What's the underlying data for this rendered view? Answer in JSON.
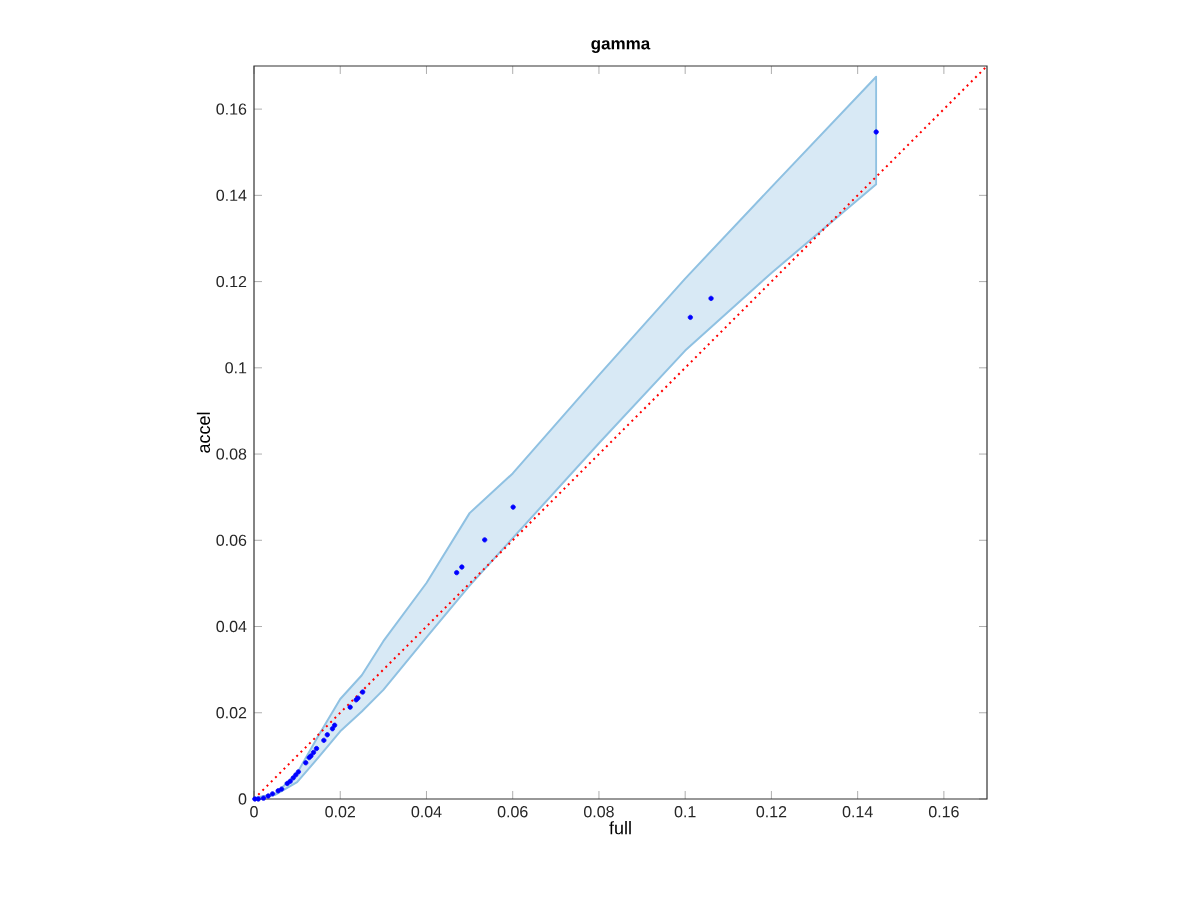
{
  "chart_data": {
    "type": "scatter",
    "title": "**gamma**",
    "xlabel": "full",
    "ylabel": "accel",
    "xlim": [
      0,
      0.17
    ],
    "ylim": [
      0,
      0.17
    ],
    "xticks": [
      0,
      0.02,
      0.04,
      0.06,
      0.08,
      0.1,
      0.12,
      0.14,
      0.16
    ],
    "yticks": [
      0,
      0.02,
      0.04,
      0.06,
      0.08,
      0.1,
      0.12,
      0.14,
      0.16
    ],
    "grid": false,
    "series": [
      {
        "type": "area",
        "color": "#8fc1e2",
        "x": [
          0,
          0.005,
          0.01,
          0.015,
          0.02,
          0.025,
          0.03,
          0.04,
          0.05,
          0.06,
          0.08,
          0.1,
          0.12,
          0.1443
        ],
        "values": [
          null,
          null,
          null,
          null,
          null,
          null,
          null,
          null,
          null,
          null,
          null,
          null,
          null,
          null
        ],
        "lower": [
          0,
          0.001,
          0.0039,
          0.0097,
          0.0157,
          0.0203,
          0.0253,
          0.0375,
          0.0495,
          0.0605,
          0.0825,
          0.104,
          0.122,
          0.1426
        ],
        "upper": [
          0.0002,
          0.0012,
          0.006,
          0.0148,
          0.0232,
          0.0287,
          0.0366,
          0.0501,
          0.0663,
          0.0755,
          0.0983,
          0.1207,
          0.1419,
          0.1675
        ]
      },
      {
        "type": "line",
        "color": "#ff0000",
        "line_style": "dotted",
        "marker": "none",
        "x": [
          0,
          0.17
        ],
        "values": [
          0,
          0.17
        ]
      },
      {
        "color": "#0000ff",
        "marker": "circle",
        "x": [
          0.0002,
          0.001,
          0.0022,
          0.0033,
          0.0043,
          0.0056,
          0.0064,
          0.0077,
          0.0084,
          0.0091,
          0.0097,
          0.0103,
          0.012,
          0.0128,
          0.0132,
          0.0138,
          0.0145,
          0.0162,
          0.017,
          0.0182,
          0.0187,
          0.0223,
          0.0237,
          0.0241,
          0.0252,
          0.047,
          0.0482,
          0.0535,
          0.0601,
          0.1012,
          0.106,
          0.1443
        ],
        "values": [
          0,
          0,
          0.0002,
          0.0007,
          0.0012,
          0.0019,
          0.0023,
          0.0036,
          0.0041,
          0.0049,
          0.0056,
          0.0063,
          0.0084,
          0.0096,
          0.01,
          0.0108,
          0.0117,
          0.0136,
          0.0149,
          0.0163,
          0.0171,
          0.0213,
          0.023,
          0.0234,
          0.0248,
          0.0525,
          0.0538,
          0.0601,
          0.0677,
          0.1117,
          0.1161,
          0.1547
        ]
      }
    ]
  }
}
